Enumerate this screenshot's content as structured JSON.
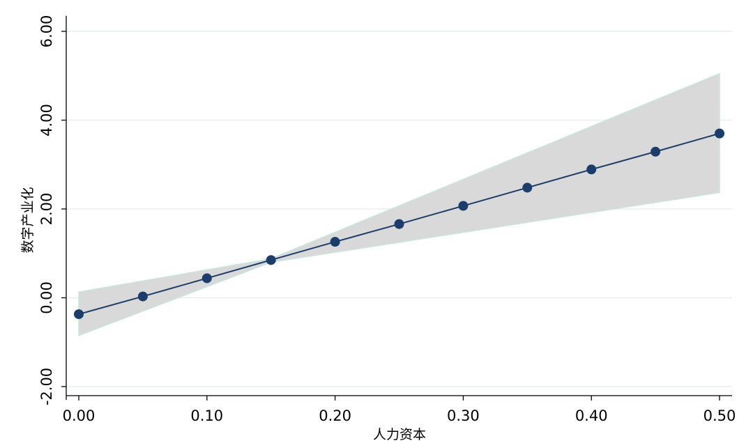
{
  "chart_data": {
    "type": "line",
    "title": "",
    "xlabel": "人力资本",
    "ylabel": "数字产业化",
    "xlim": [
      0,
      0.5
    ],
    "ylim": [
      -2,
      6
    ],
    "x_ticks": [
      "0.00",
      "0.10",
      "0.20",
      "0.30",
      "0.40",
      "0.50"
    ],
    "y_ticks": [
      "-2.00",
      "0.00",
      "2.00",
      "4.00",
      "6.00"
    ],
    "grid": "horizontal",
    "legend": "none",
    "series": [
      {
        "x": [
          0.0,
          0.05,
          0.1,
          0.15,
          0.2,
          0.25,
          0.3,
          0.35,
          0.4,
          0.45,
          0.5
        ],
        "y": [
          -0.37,
          0.03,
          0.44,
          0.85,
          1.26,
          1.66,
          2.07,
          2.48,
          2.89,
          3.29,
          3.7
        ]
      }
    ],
    "confidence_band": {
      "x": [
        0.0,
        0.15,
        0.5
      ],
      "lower": [
        -0.85,
        0.8,
        2.37
      ],
      "upper": [
        0.13,
        0.88,
        5.05
      ]
    },
    "colors": {
      "line": "#1a3d6b",
      "marker": "#1a3d6b",
      "band": "#d9d9d9",
      "band_edge": "#c8e6dc",
      "grid": "#e3eeec",
      "axis": "#000000"
    }
  }
}
